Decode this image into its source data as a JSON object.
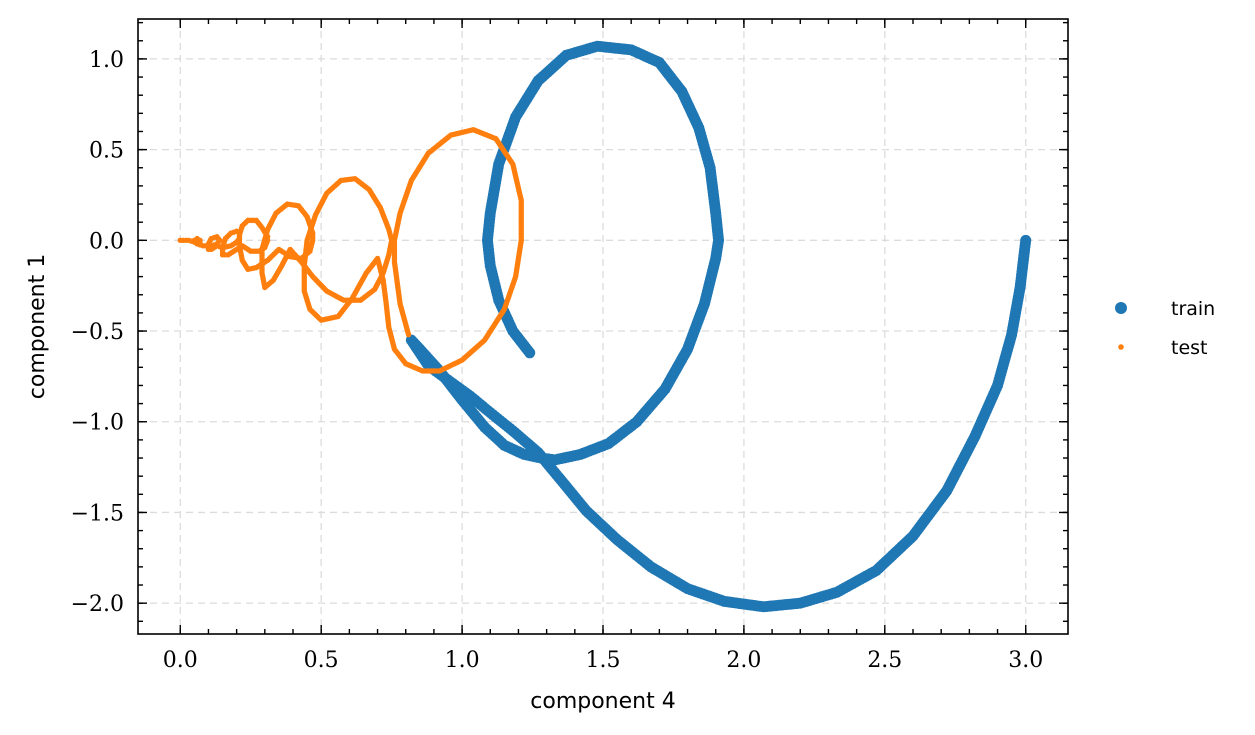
{
  "chart_data": {
    "type": "scatter",
    "title": "",
    "xlabel": "component 4",
    "ylabel": "component 1",
    "xlim": [
      -0.15,
      3.15
    ],
    "ylim": [
      -2.17,
      1.22
    ],
    "xticks": [
      0.0,
      0.5,
      1.0,
      1.5,
      2.0,
      2.5,
      3.0
    ],
    "xtick_labels": [
      "0.0",
      "0.5",
      "1.0",
      "1.5",
      "2.0",
      "2.5",
      "3.0"
    ],
    "yticks": [
      -2.0,
      -1.5,
      -1.0,
      -0.5,
      0.0,
      0.5,
      1.0
    ],
    "ytick_labels": [
      "−2.0",
      "−1.5",
      "−1.0",
      "−0.5",
      "0.0",
      "0.5",
      "1.0"
    ],
    "grid": true,
    "legend_position": "outside-right",
    "series": [
      {
        "name": "train",
        "color": "#1f77b4",
        "marker": "large-dot",
        "x": [
          3.0,
          2.98,
          2.95,
          2.9,
          2.82,
          2.72,
          2.6,
          2.47,
          2.33,
          2.2,
          2.07,
          1.93,
          1.8,
          1.67,
          1.55,
          1.44,
          1.35,
          1.27,
          1.18,
          1.1,
          1.03,
          0.95,
          0.88,
          0.82,
          0.85,
          0.92,
          1.0,
          1.08,
          1.15,
          1.22,
          1.28,
          1.33,
          1.42,
          1.52,
          1.62,
          1.72,
          1.8,
          1.86,
          1.9,
          1.91,
          1.9,
          1.88,
          1.84,
          1.78,
          1.7,
          1.6,
          1.48,
          1.37,
          1.27,
          1.19,
          1.13,
          1.1,
          1.09,
          1.1,
          1.13,
          1.18,
          1.24
        ],
        "y": [
          0.0,
          -0.26,
          -0.52,
          -0.8,
          -1.08,
          -1.38,
          -1.63,
          -1.82,
          -1.94,
          -2.0,
          -2.02,
          -1.99,
          -1.92,
          -1.8,
          -1.65,
          -1.49,
          -1.32,
          -1.17,
          -1.05,
          -0.95,
          -0.86,
          -0.77,
          -0.69,
          -0.55,
          -0.6,
          -0.72,
          -0.88,
          -1.03,
          -1.13,
          -1.18,
          -1.2,
          -1.21,
          -1.18,
          -1.12,
          -1.0,
          -0.82,
          -0.6,
          -0.35,
          -0.1,
          0.0,
          0.15,
          0.4,
          0.62,
          0.82,
          0.98,
          1.05,
          1.07,
          1.02,
          0.88,
          0.68,
          0.42,
          0.15,
          0.0,
          -0.14,
          -0.33,
          -0.5,
          -0.62
        ]
      },
      {
        "name": "test",
        "color": "#ff7f0e",
        "marker": "small-dot",
        "x": [
          0.81,
          0.78,
          0.76,
          0.76,
          0.78,
          0.82,
          0.88,
          0.96,
          1.04,
          1.12,
          1.18,
          1.21,
          1.21,
          1.19,
          1.15,
          1.08,
          1.0,
          0.92,
          0.86,
          0.8,
          0.76,
          0.74,
          0.73,
          0.72,
          0.7,
          0.66,
          0.61,
          0.56,
          0.5,
          0.46,
          0.44,
          0.44,
          0.45,
          0.48,
          0.52,
          0.57,
          0.62,
          0.67,
          0.71,
          0.74,
          0.75,
          0.74,
          0.72,
          0.69,
          0.64,
          0.58,
          0.52,
          0.47,
          0.43,
          0.39,
          0.36,
          0.33,
          0.3,
          0.29,
          0.29,
          0.31,
          0.34,
          0.38,
          0.42,
          0.45,
          0.47,
          0.47,
          0.46,
          0.43,
          0.39,
          0.35,
          0.31,
          0.27,
          0.24,
          0.22,
          0.21,
          0.21,
          0.22,
          0.24,
          0.27,
          0.29,
          0.31,
          0.31,
          0.3,
          0.28,
          0.25,
          0.22,
          0.19,
          0.17,
          0.15,
          0.15,
          0.16,
          0.18,
          0.2,
          0.21,
          0.21,
          0.2,
          0.18,
          0.15,
          0.13,
          0.11,
          0.1,
          0.1,
          0.11,
          0.13,
          0.14,
          0.13,
          0.11,
          0.08,
          0.06,
          0.05,
          0.05,
          0.06,
          0.07,
          0.07,
          0.05,
          0.03,
          0.02,
          0.0
        ],
        "y": [
          -0.52,
          -0.35,
          -0.12,
          0.0,
          0.15,
          0.33,
          0.48,
          0.58,
          0.61,
          0.56,
          0.42,
          0.22,
          0.0,
          -0.2,
          -0.38,
          -0.55,
          -0.66,
          -0.72,
          -0.72,
          -0.68,
          -0.6,
          -0.48,
          -0.34,
          -0.22,
          -0.1,
          -0.18,
          -0.32,
          -0.42,
          -0.44,
          -0.38,
          -0.28,
          -0.14,
          0.0,
          0.14,
          0.26,
          0.33,
          0.34,
          0.28,
          0.18,
          0.06,
          0.0,
          -0.08,
          -0.18,
          -0.27,
          -0.33,
          -0.33,
          -0.28,
          -0.2,
          -0.12,
          -0.05,
          -0.14,
          -0.22,
          -0.26,
          -0.18,
          -0.05,
          0.06,
          0.15,
          0.2,
          0.19,
          0.13,
          0.04,
          0.0,
          -0.06,
          -0.1,
          -0.09,
          -0.05,
          -0.11,
          -0.15,
          -0.16,
          -0.11,
          -0.03,
          0.03,
          0.08,
          0.11,
          0.11,
          0.07,
          0.02,
          0.0,
          -0.04,
          -0.06,
          -0.06,
          -0.03,
          -0.06,
          -0.08,
          -0.08,
          -0.04,
          0.01,
          0.04,
          0.05,
          0.04,
          0.01,
          -0.01,
          -0.03,
          -0.04,
          -0.03,
          -0.05,
          -0.05,
          -0.02,
          0.01,
          0.02,
          0.0,
          -0.02,
          -0.03,
          -0.03,
          -0.02,
          -0.01,
          0.0,
          0.01,
          0.0,
          -0.01,
          -0.01,
          0.0,
          0.0,
          0.0
        ]
      }
    ]
  }
}
